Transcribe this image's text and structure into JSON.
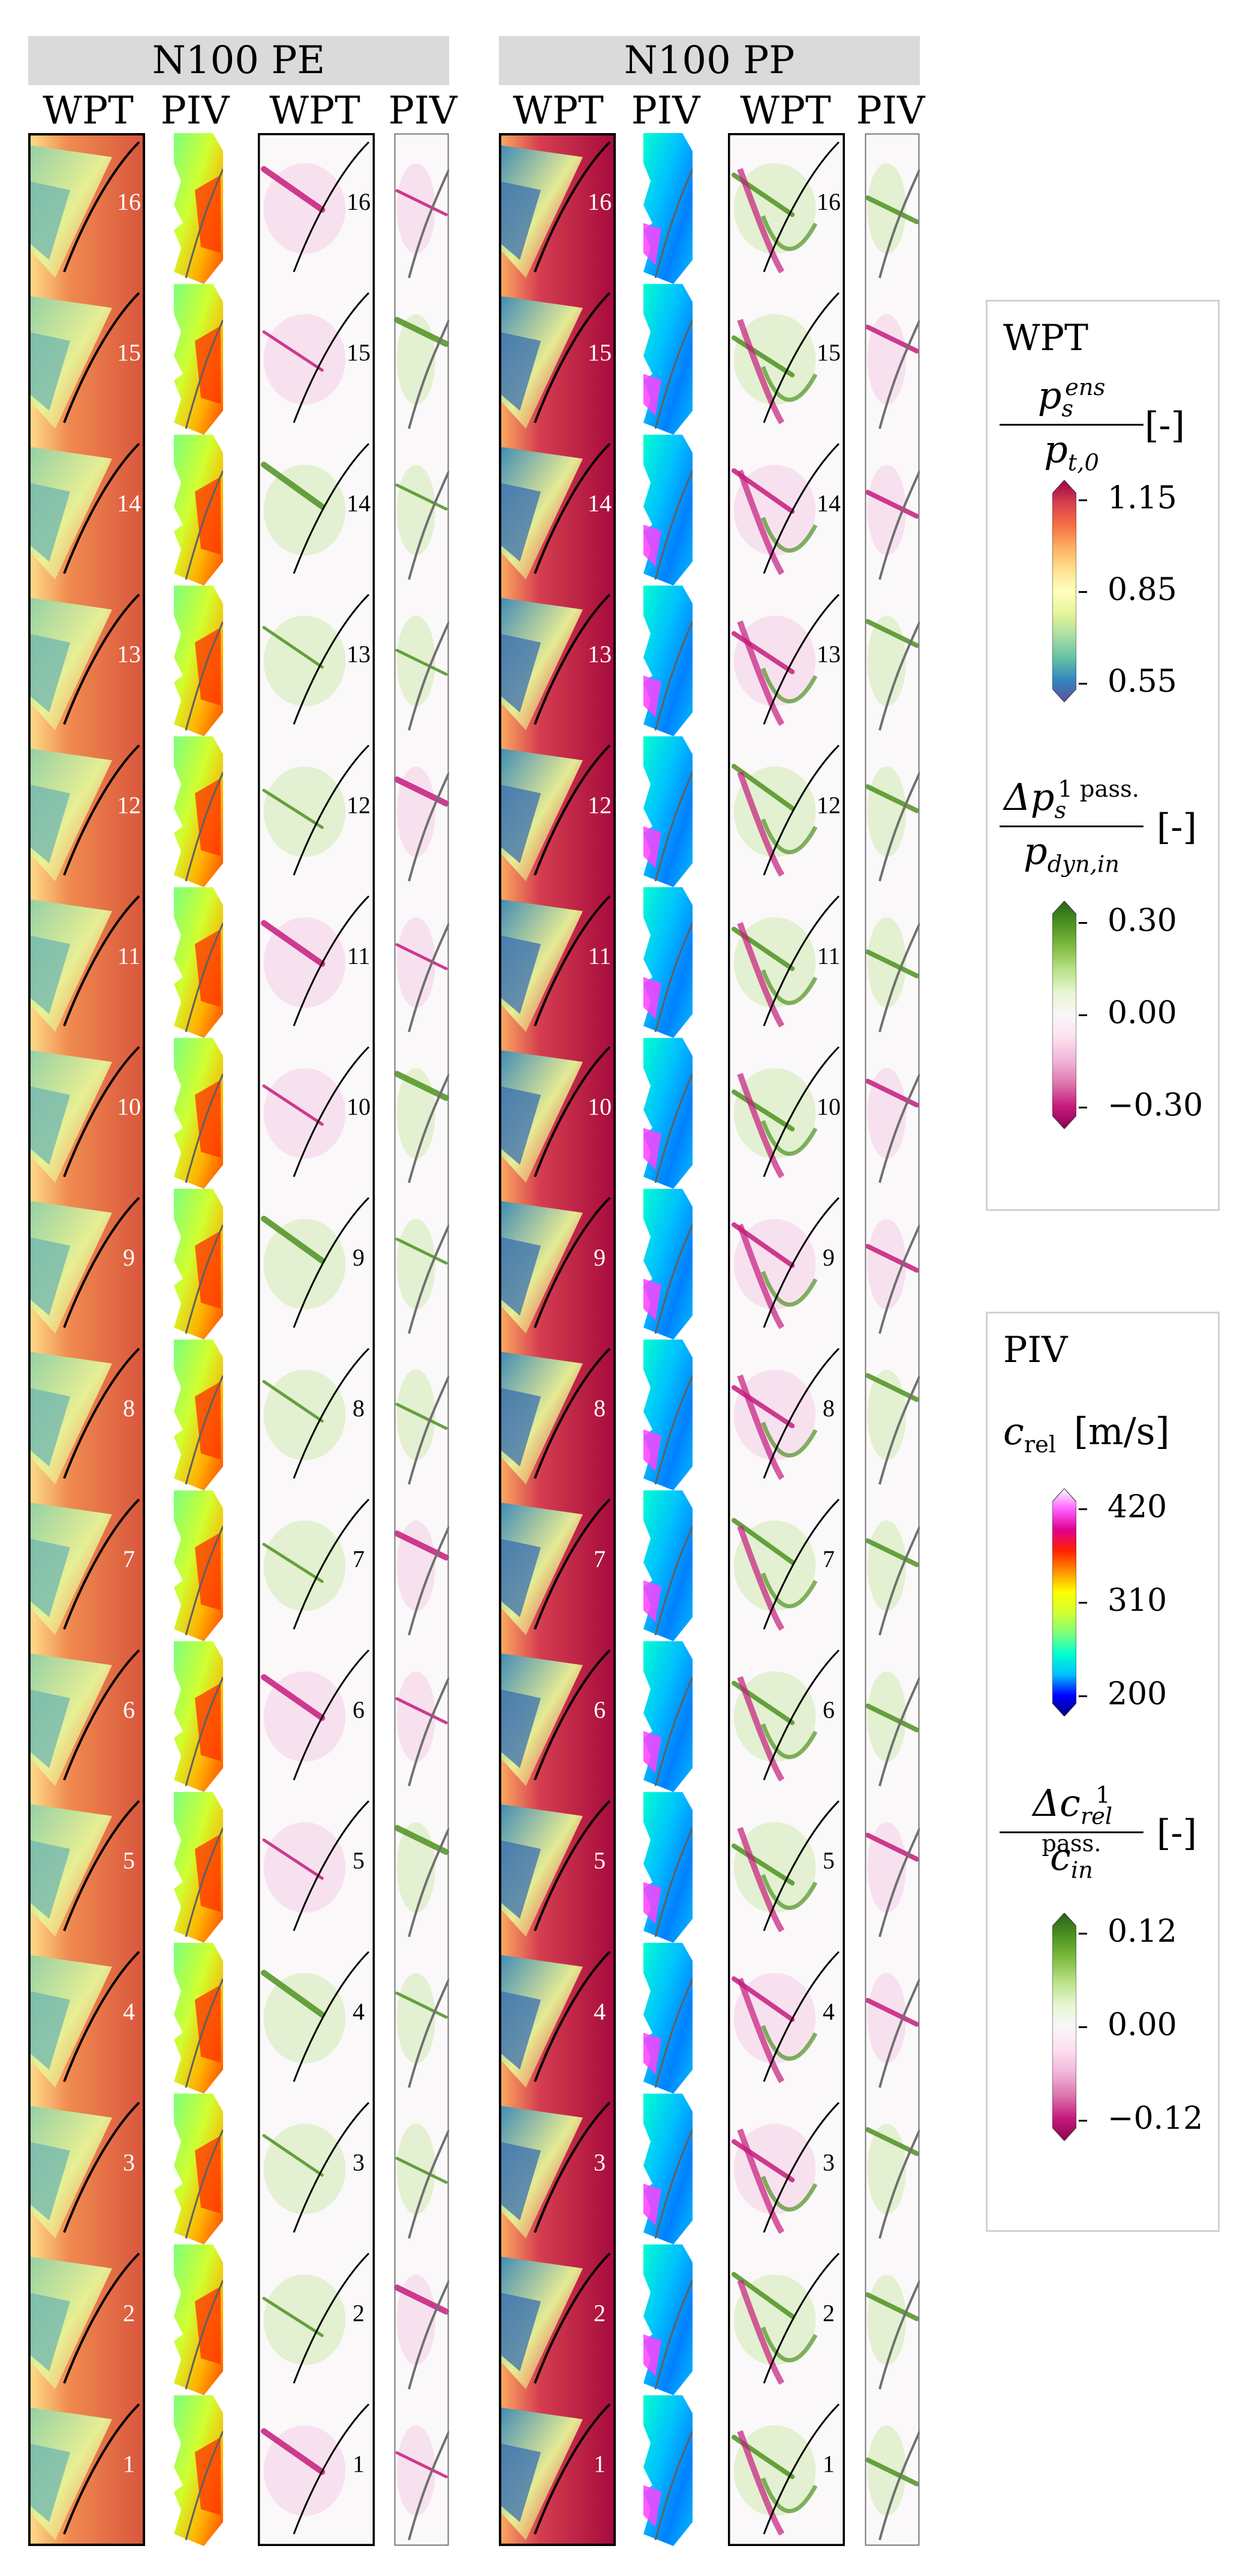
{
  "groups": [
    {
      "title": "N100 PE"
    },
    {
      "title": "N100 PP"
    }
  ],
  "columns": [
    "WPT",
    "PIV",
    "WPT",
    "PIV",
    "WPT",
    "PIV",
    "WPT",
    "PIV"
  ],
  "passage_numbers": [
    "16",
    "15",
    "14",
    "13",
    "12",
    "11",
    "10",
    "9",
    "8",
    "7",
    "6",
    "5",
    "4",
    "3",
    "2",
    "1"
  ],
  "legend_wpt": {
    "title": "WPT",
    "ps": {
      "numerator": "p",
      "numerator_sup": "ens",
      "numerator_sub": "s",
      "denominator": "p",
      "denominator_sub": "t,0",
      "unit": "[-]",
      "ticks": [
        "1.15",
        "0.85",
        "0.55"
      ]
    },
    "dps": {
      "numerator": "Δp",
      "numerator_sup": "1 pass.",
      "numerator_sub": "s",
      "denominator": "p",
      "denominator_sub": "dyn,in",
      "unit": "[-]",
      "ticks": [
        "0.30",
        "0.00",
        "−0.30"
      ]
    }
  },
  "legend_piv": {
    "title": "PIV",
    "crel": {
      "symbol": "c",
      "symbol_sub": "rel",
      "unit": "[m/s]",
      "ticks": [
        "420",
        "310",
        "200"
      ]
    },
    "dcrel": {
      "numerator": "Δc",
      "numerator_sup": "1 pass.",
      "numerator_sub": "rel",
      "denominator": "c",
      "denominator_sub": "in",
      "unit": "[-]",
      "ticks": [
        "0.12",
        "0.00",
        "−0.12"
      ]
    }
  },
  "colors": {
    "header_bg": "#dadada",
    "spectral": [
      "#5e4fa2",
      "#3288bd",
      "#66c2a5",
      "#abdda4",
      "#e6f598",
      "#ffffbf",
      "#fee08b",
      "#fdae61",
      "#f46d43",
      "#d53e4f",
      "#9e0142"
    ],
    "jet": [
      "#00007f",
      "#0000ff",
      "#00bfff",
      "#00ffd0",
      "#7dff7d",
      "#d0ff30",
      "#ffff00",
      "#ff9000",
      "#ff2000",
      "#e0008f",
      "#ff60ff",
      "#ffffff"
    ],
    "piyg": [
      "#8e0152",
      "#c51b7d",
      "#de77ae",
      "#f1b6da",
      "#fde0ef",
      "#f7f7f7",
      "#e6f5d0",
      "#b8e186",
      "#7fbc41",
      "#4d9221",
      "#276419"
    ]
  }
}
